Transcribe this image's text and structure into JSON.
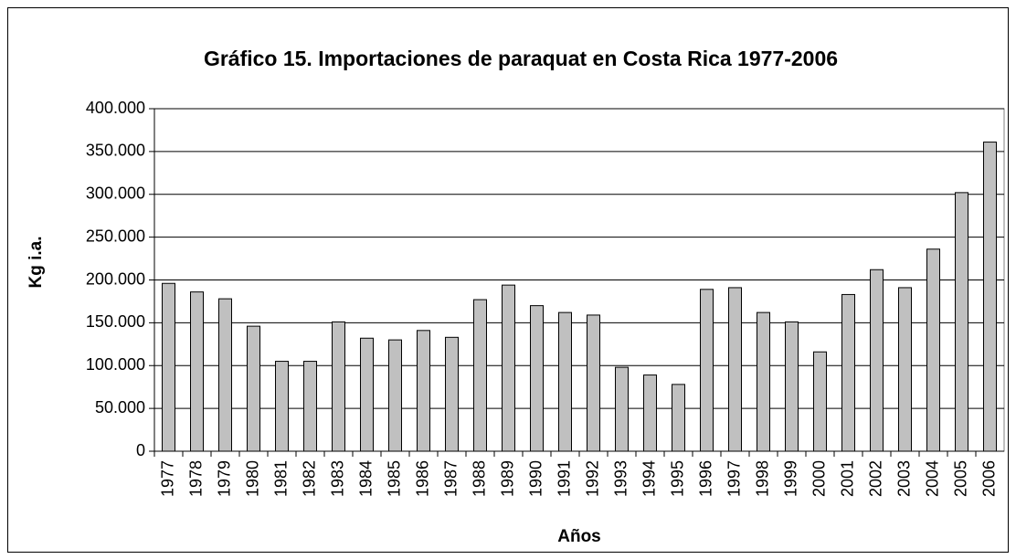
{
  "chart_data": {
    "type": "bar",
    "title": "Gráfico 15. Importaciones de paraquat en Costa Rica 1977-2006",
    "x_label": "Años",
    "y_label": "Kg i.a.",
    "categories": [
      "1977",
      "1978",
      "1979",
      "1980",
      "1981",
      "1982",
      "1983",
      "1984",
      "1985",
      "1986",
      "1987",
      "1988",
      "1989",
      "1990",
      "1991",
      "1992",
      "1993",
      "1994",
      "1995",
      "1996",
      "1997",
      "1998",
      "1999",
      "2000",
      "2001",
      "2002",
      "2003",
      "2004",
      "2005",
      "2006"
    ],
    "values": [
      196000,
      186000,
      178000,
      146000,
      105000,
      105000,
      151000,
      132000,
      130000,
      141000,
      133000,
      177000,
      194000,
      170000,
      162000,
      159000,
      98000,
      89000,
      78000,
      189000,
      191000,
      162000,
      151000,
      116000,
      183000,
      212000,
      191000,
      236000,
      302000,
      361000
    ],
    "color": "#c0c0c0",
    "ylim": [
      0,
      400000
    ],
    "yticks": [
      0,
      {
        "value": 50000,
        "label": "50.000"
      },
      {
        "value": 100000,
        "label": "100.000"
      },
      {
        "value": 150000,
        "label": "150.000"
      },
      {
        "value": 200000,
        "label": "200.000"
      },
      {
        "value": 250000,
        "label": "250.000"
      },
      {
        "value": 300000,
        "label": "300.000"
      },
      {
        "value": 350000,
        "label": "350.000"
      },
      {
        "value": 400000,
        "label": "400.000"
      }
    ],
    "grid": true
  }
}
